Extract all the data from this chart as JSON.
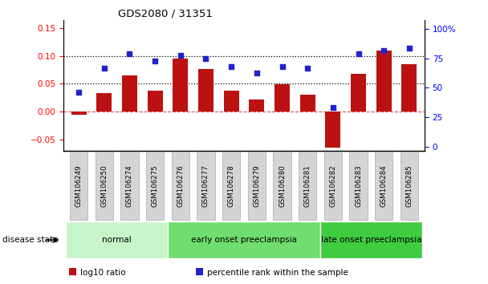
{
  "title": "GDS2080 / 31351",
  "samples": [
    "GSM106249",
    "GSM106250",
    "GSM106274",
    "GSM106275",
    "GSM106276",
    "GSM106277",
    "GSM106278",
    "GSM106279",
    "GSM106280",
    "GSM106281",
    "GSM106282",
    "GSM106283",
    "GSM106284",
    "GSM106285"
  ],
  "log10_ratio": [
    -0.005,
    0.033,
    0.065,
    0.037,
    0.095,
    0.077,
    0.037,
    0.022,
    0.049,
    0.03,
    -0.065,
    0.068,
    0.11,
    0.085
  ],
  "percentile_rank": [
    46,
    67,
    79,
    73,
    78,
    75,
    68,
    63,
    68,
    67,
    33,
    79,
    82,
    84
  ],
  "groups": [
    {
      "label": "normal",
      "start": 0,
      "end": 4,
      "color": "#c8f5c8"
    },
    {
      "label": "early onset preeclampsia",
      "start": 4,
      "end": 10,
      "color": "#70dd70"
    },
    {
      "label": "late onset preeclampsia",
      "start": 10,
      "end": 14,
      "color": "#40cc40"
    }
  ],
  "bar_color": "#bb1111",
  "scatter_color": "#2222cc",
  "ylim_left": [
    -0.07,
    0.165
  ],
  "ylim_right": [
    -3.5,
    108
  ],
  "yticks_left": [
    -0.05,
    0.0,
    0.05,
    0.1,
    0.15
  ],
  "yticks_right": [
    0,
    25,
    50,
    75,
    100
  ],
  "hline_y_left_dotted": [
    0.05,
    0.1
  ],
  "hline_y_left_dashed": [
    0.0
  ],
  "background_color": "#ffffff",
  "legend_labels": [
    "log10 ratio",
    "percentile rank within the sample"
  ],
  "disease_state_label": "disease state"
}
